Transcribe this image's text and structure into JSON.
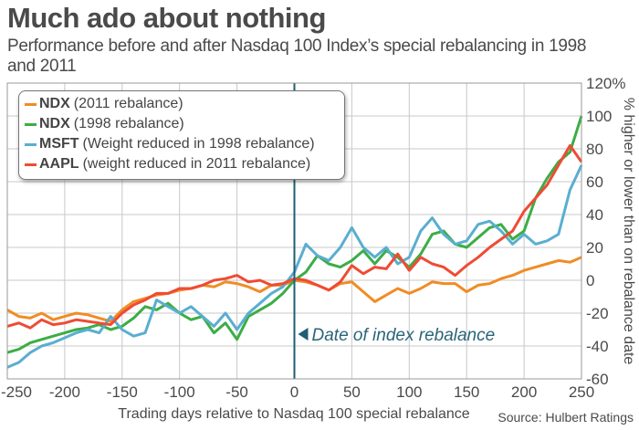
{
  "title": "Much ado about nothing",
  "subtitle": "Performance before and after Nasdaq 100 Index’s special rebalancing in 1998 and 2011",
  "source": "Source: Hulbert Ratings",
  "colors": {
    "ndx2011": "#f08c24",
    "ndx1998": "#3cad45",
    "msft": "#5aaed0",
    "aapl": "#ef4b35",
    "rebalance_line": "#1f5e75",
    "grid": "#c8c8c8"
  },
  "legend": [
    {
      "name": "NDX",
      "detail": "(2011 rebalance)",
      "color_key": "ndx2011"
    },
    {
      "name": "NDX",
      "detail": "(1998 rebalance)",
      "color_key": "ndx1998"
    },
    {
      "name": "MSFT",
      "detail": "(Weight reduced in 1998 rebalance)",
      "color_key": "msft"
    },
    {
      "name": "AAPL",
      "detail": "(weight reduced in 2011 rebalance)",
      "color_key": "aapl"
    }
  ],
  "chart_data": {
    "type": "line",
    "title": "Much ado about nothing",
    "subtitle": "Performance before and after Nasdaq 100 Index’s special rebalancing in 1998 and 2011",
    "xlabel": "Trading days relative to Nasdaq 100 special rebalance",
    "ylabel": "% higher or lower than on rebalance date",
    "xlim": [
      -250,
      250
    ],
    "ylim": [
      -60,
      120
    ],
    "x_ticks": [
      -250,
      -200,
      -150,
      -100,
      -50,
      0,
      50,
      100,
      150,
      200,
      250
    ],
    "y_ticks": [
      -60,
      -40,
      -20,
      0,
      20,
      40,
      60,
      80,
      100,
      120
    ],
    "y_tick_labels": [
      "-60",
      "-40",
      "-20",
      "0",
      "20",
      "40",
      "60",
      "80",
      "100",
      "120%"
    ],
    "grid": true,
    "legend_position": "top-left",
    "annotation": {
      "text": "Date of index rebalance",
      "x": 0
    },
    "x": [
      -250,
      -240,
      -230,
      -220,
      -210,
      -200,
      -190,
      -180,
      -170,
      -160,
      -150,
      -140,
      -130,
      -120,
      -110,
      -100,
      -90,
      -80,
      -70,
      -60,
      -50,
      -40,
      -30,
      -20,
      -10,
      0,
      10,
      20,
      30,
      40,
      50,
      60,
      70,
      80,
      90,
      100,
      110,
      120,
      130,
      140,
      150,
      160,
      170,
      180,
      190,
      200,
      210,
      220,
      230,
      240,
      250
    ],
    "series": [
      {
        "name": "NDX (2011 rebalance)",
        "color_key": "ndx2011",
        "values": [
          -18,
          -22,
          -23,
          -20,
          -24,
          -22,
          -20,
          -21,
          -23,
          -25,
          -18,
          -13,
          -11,
          -9,
          -8,
          -6,
          -5,
          -3,
          -4,
          -1,
          -2,
          -4,
          -7,
          -3,
          -3,
          0,
          -1,
          -3,
          -6,
          -2,
          -1,
          -7,
          -13,
          -9,
          -5,
          -8,
          -5,
          -1,
          -2,
          -2,
          -7,
          -3,
          -2,
          1,
          3,
          6,
          8,
          10,
          12,
          11,
          14
        ]
      },
      {
        "name": "NDX (1998 rebalance)",
        "color_key": "ndx1998",
        "values": [
          -44,
          -42,
          -38,
          -36,
          -34,
          -32,
          -30,
          -29,
          -27,
          -30,
          -28,
          -23,
          -16,
          -18,
          -14,
          -20,
          -24,
          -22,
          -32,
          -26,
          -36,
          -22,
          -18,
          -14,
          -8,
          0,
          5,
          15,
          10,
          8,
          12,
          18,
          10,
          18,
          14,
          8,
          16,
          28,
          30,
          22,
          20,
          26,
          32,
          34,
          25,
          30,
          50,
          62,
          72,
          78,
          100
        ]
      },
      {
        "name": "MSFT (Weight reduced in 1998 rebalance)",
        "color_key": "msft",
        "values": [
          -53,
          -50,
          -44,
          -40,
          -38,
          -35,
          -32,
          -30,
          -32,
          -22,
          -30,
          -34,
          -32,
          -12,
          -16,
          -20,
          -16,
          -22,
          -28,
          -20,
          -30,
          -20,
          -14,
          -8,
          -4,
          5,
          22,
          15,
          12,
          20,
          32,
          20,
          14,
          20,
          10,
          14,
          30,
          38,
          28,
          22,
          24,
          34,
          36,
          30,
          22,
          28,
          22,
          24,
          28,
          55,
          70
        ]
      },
      {
        "name": "AAPL (weight reduced in 2011 rebalance)",
        "color_key": "aapl",
        "values": [
          -28,
          -26,
          -29,
          -24,
          -27,
          -26,
          -24,
          -25,
          -26,
          -27,
          -20,
          -15,
          -12,
          -8,
          -8,
          -5,
          -5,
          -3,
          0,
          1,
          3,
          -1,
          0,
          -3,
          -2,
          1,
          0,
          -3,
          -6,
          -1,
          9,
          4,
          8,
          7,
          16,
          6,
          14,
          10,
          8,
          3,
          9,
          14,
          20,
          25,
          30,
          42,
          50,
          58,
          70,
          82,
          72
        ]
      }
    ]
  }
}
